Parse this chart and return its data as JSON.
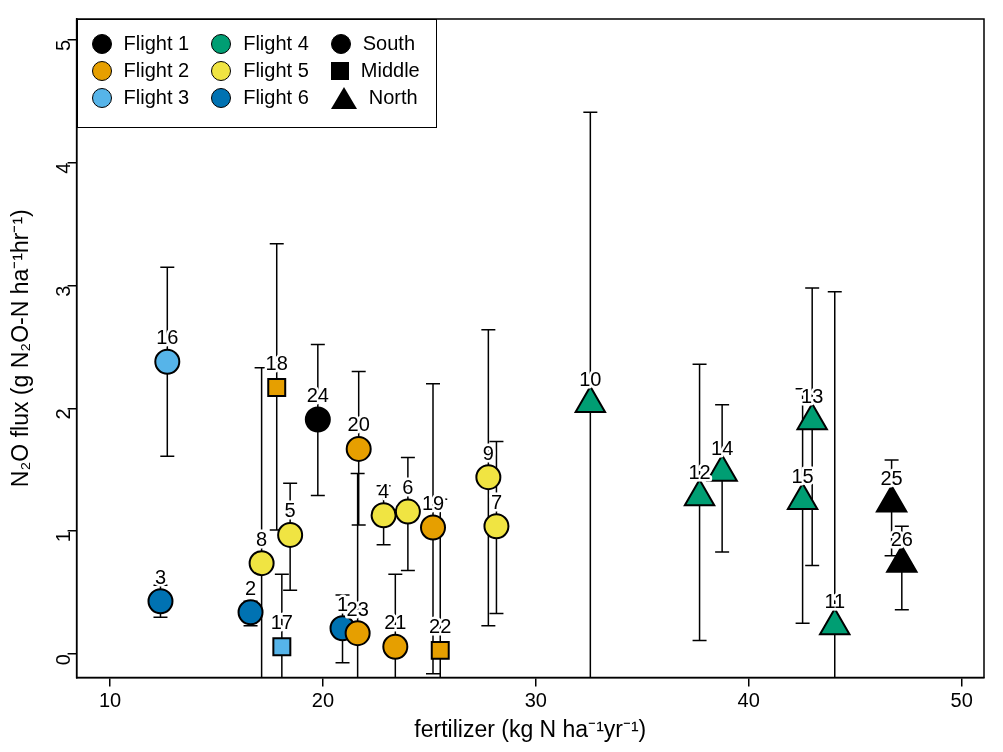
{
  "chart_data": {
    "type": "scatter",
    "xlabel": "fertilizer (kg N ha⁻¹yr⁻¹)",
    "ylabel": "N₂O flux (g N₂O-N ha⁻¹hr⁻¹)",
    "xlim": [
      8.43,
      51.05
    ],
    "xticks": [
      10,
      20,
      30,
      40,
      50
    ],
    "ylim": [
      -0.19,
      5.17
    ],
    "yticks": [
      0,
      1,
      2,
      3,
      4,
      5
    ],
    "grid": false,
    "legend": "top left",
    "series": [
      {
        "name": "Flight 1",
        "color": "#000000",
        "marker": "circle"
      },
      {
        "name": "Flight 2",
        "color": "#e69f00",
        "marker": "circle"
      },
      {
        "name": "Flight 3",
        "color": "#56b4e9",
        "marker": "circle"
      },
      {
        "name": "Flight 4",
        "color": "#009e73",
        "marker": "circle"
      },
      {
        "name": "Flight 5",
        "color": "#f0e442",
        "marker": "circle"
      },
      {
        "name": "Flight 6",
        "color": "#0072b2",
        "marker": "circle"
      },
      {
        "name": "South",
        "color": "#000000",
        "marker": "circle"
      },
      {
        "name": "Middle",
        "color": "#000000",
        "marker": "square"
      },
      {
        "name": "North",
        "color": "#000000",
        "marker": "triangle"
      },
      {
        "color": "#000000",
        "marker": "circle",
        "x": [
          19.76
        ],
        "values": [
          1.91
        ],
        "errors": [
          [
            1.29,
            2.52
          ]
        ]
      },
      {
        "color": "#000000",
        "marker": "triangle",
        "x": [
          46.71,
          47.19
        ],
        "values": [
          1.23,
          0.74
        ],
        "errors": [
          [
            0.8,
            1.58
          ],
          [
            0.36,
            1.04
          ]
        ]
      },
      {
        "color": "#e69f00",
        "marker": "circle",
        "x": [
          21.68,
          21.63,
          23.4,
          25.17
        ],
        "values": [
          1.67,
          0.17,
          0.06,
          1.03
        ],
        "errors": [
          [
            1.05,
            2.3
          ],
          [
            -0.19,
            1.47
          ],
          [
            -0.19,
            0.65
          ],
          [
            -0.16,
            2.2
          ]
        ]
      },
      {
        "color": "#e69f00",
        "marker": "square",
        "x": [
          17.83,
          25.51
        ],
        "values": [
          2.17,
          0.03
        ],
        "errors": [
          [
            1.01,
            3.34
          ],
          [
            -0.19,
            1.26
          ]
        ]
      },
      {
        "color": "#56b4e9",
        "marker": "circle",
        "x": [
          12.69
        ],
        "values": [
          2.38
        ],
        "errors": [
          [
            1.61,
            3.15
          ]
        ]
      },
      {
        "color": "#56b4e9",
        "marker": "square",
        "x": [
          18.07
        ],
        "values": [
          0.06
        ],
        "errors": [
          [
            -0.19,
            0.65
          ]
        ]
      },
      {
        "color": "#009e73",
        "marker": "triangle",
        "x": [
          32.56,
          37.69,
          38.75,
          42.98,
          42.53,
          44.04
        ],
        "values": [
          2.04,
          1.28,
          1.48,
          1.9,
          1.25,
          0.23
        ],
        "errors": [
          [
            -0.19,
            4.41
          ],
          [
            0.11,
            2.36
          ],
          [
            0.83,
            2.03
          ],
          [
            0.72,
            2.98
          ],
          [
            0.25,
            2.16
          ],
          [
            -0.19,
            2.95
          ]
        ]
      },
      {
        "color": "#f0e442",
        "marker": "circle",
        "x": [
          17.12,
          18.46,
          22.85,
          23.99,
          27.77,
          28.15
        ],
        "values": [
          0.74,
          0.97,
          1.13,
          1.16,
          1.44,
          1.04
        ],
        "errors": [
          [
            -0.19,
            2.33
          ],
          [
            0.52,
            1.39
          ],
          [
            0.89,
            1.37
          ],
          [
            0.68,
            1.6
          ],
          [
            0.23,
            2.64
          ],
          [
            0.33,
            1.73
          ]
        ]
      },
      {
        "color": "#0072b2",
        "marker": "circle",
        "x": [
          12.37,
          16.6,
          20.92
        ],
        "values": [
          0.43,
          0.34,
          0.21
        ],
        "errors": [
          [
            0.3,
            0.56
          ],
          [
            0.23,
            0.43
          ],
          [
            -0.07,
            0.48
          ]
        ]
      }
    ],
    "annotations": [
      {
        "text": "24",
        "x": 19.76,
        "y": 1.91
      },
      {
        "text": "25",
        "x": 46.71,
        "y": 1.23
      },
      {
        "text": "26",
        "x": 47.19,
        "y": 0.74
      },
      {
        "text": "20",
        "x": 21.68,
        "y": 1.67
      },
      {
        "text": "23",
        "x": 21.63,
        "y": 0.17
      },
      {
        "text": "21",
        "x": 23.4,
        "y": 0.06
      },
      {
        "text": "19",
        "x": 25.17,
        "y": 1.03
      },
      {
        "text": "18",
        "x": 17.83,
        "y": 2.17
      },
      {
        "text": "22",
        "x": 25.51,
        "y": 0.03
      },
      {
        "text": "16",
        "x": 12.69,
        "y": 2.38
      },
      {
        "text": "17",
        "x": 18.07,
        "y": 0.06
      },
      {
        "text": "10",
        "x": 32.56,
        "y": 2.04
      },
      {
        "text": "12",
        "x": 37.69,
        "y": 1.28
      },
      {
        "text": "14",
        "x": 38.75,
        "y": 1.48
      },
      {
        "text": "13",
        "x": 42.98,
        "y": 1.9
      },
      {
        "text": "15",
        "x": 42.53,
        "y": 1.25
      },
      {
        "text": "11",
        "x": 44.04,
        "y": 0.23
      },
      {
        "text": "8",
        "x": 17.12,
        "y": 0.74
      },
      {
        "text": "5",
        "x": 18.46,
        "y": 0.97
      },
      {
        "text": "4",
        "x": 22.85,
        "y": 1.13
      },
      {
        "text": "6",
        "x": 23.99,
        "y": 1.16
      },
      {
        "text": "9",
        "x": 27.77,
        "y": 1.44
      },
      {
        "text": "7",
        "x": 28.15,
        "y": 1.04
      },
      {
        "text": "3",
        "x": 12.37,
        "y": 0.43
      },
      {
        "text": "2",
        "x": 16.6,
        "y": 0.34
      },
      {
        "text": "1",
        "x": 20.92,
        "y": 0.21
      }
    ]
  }
}
